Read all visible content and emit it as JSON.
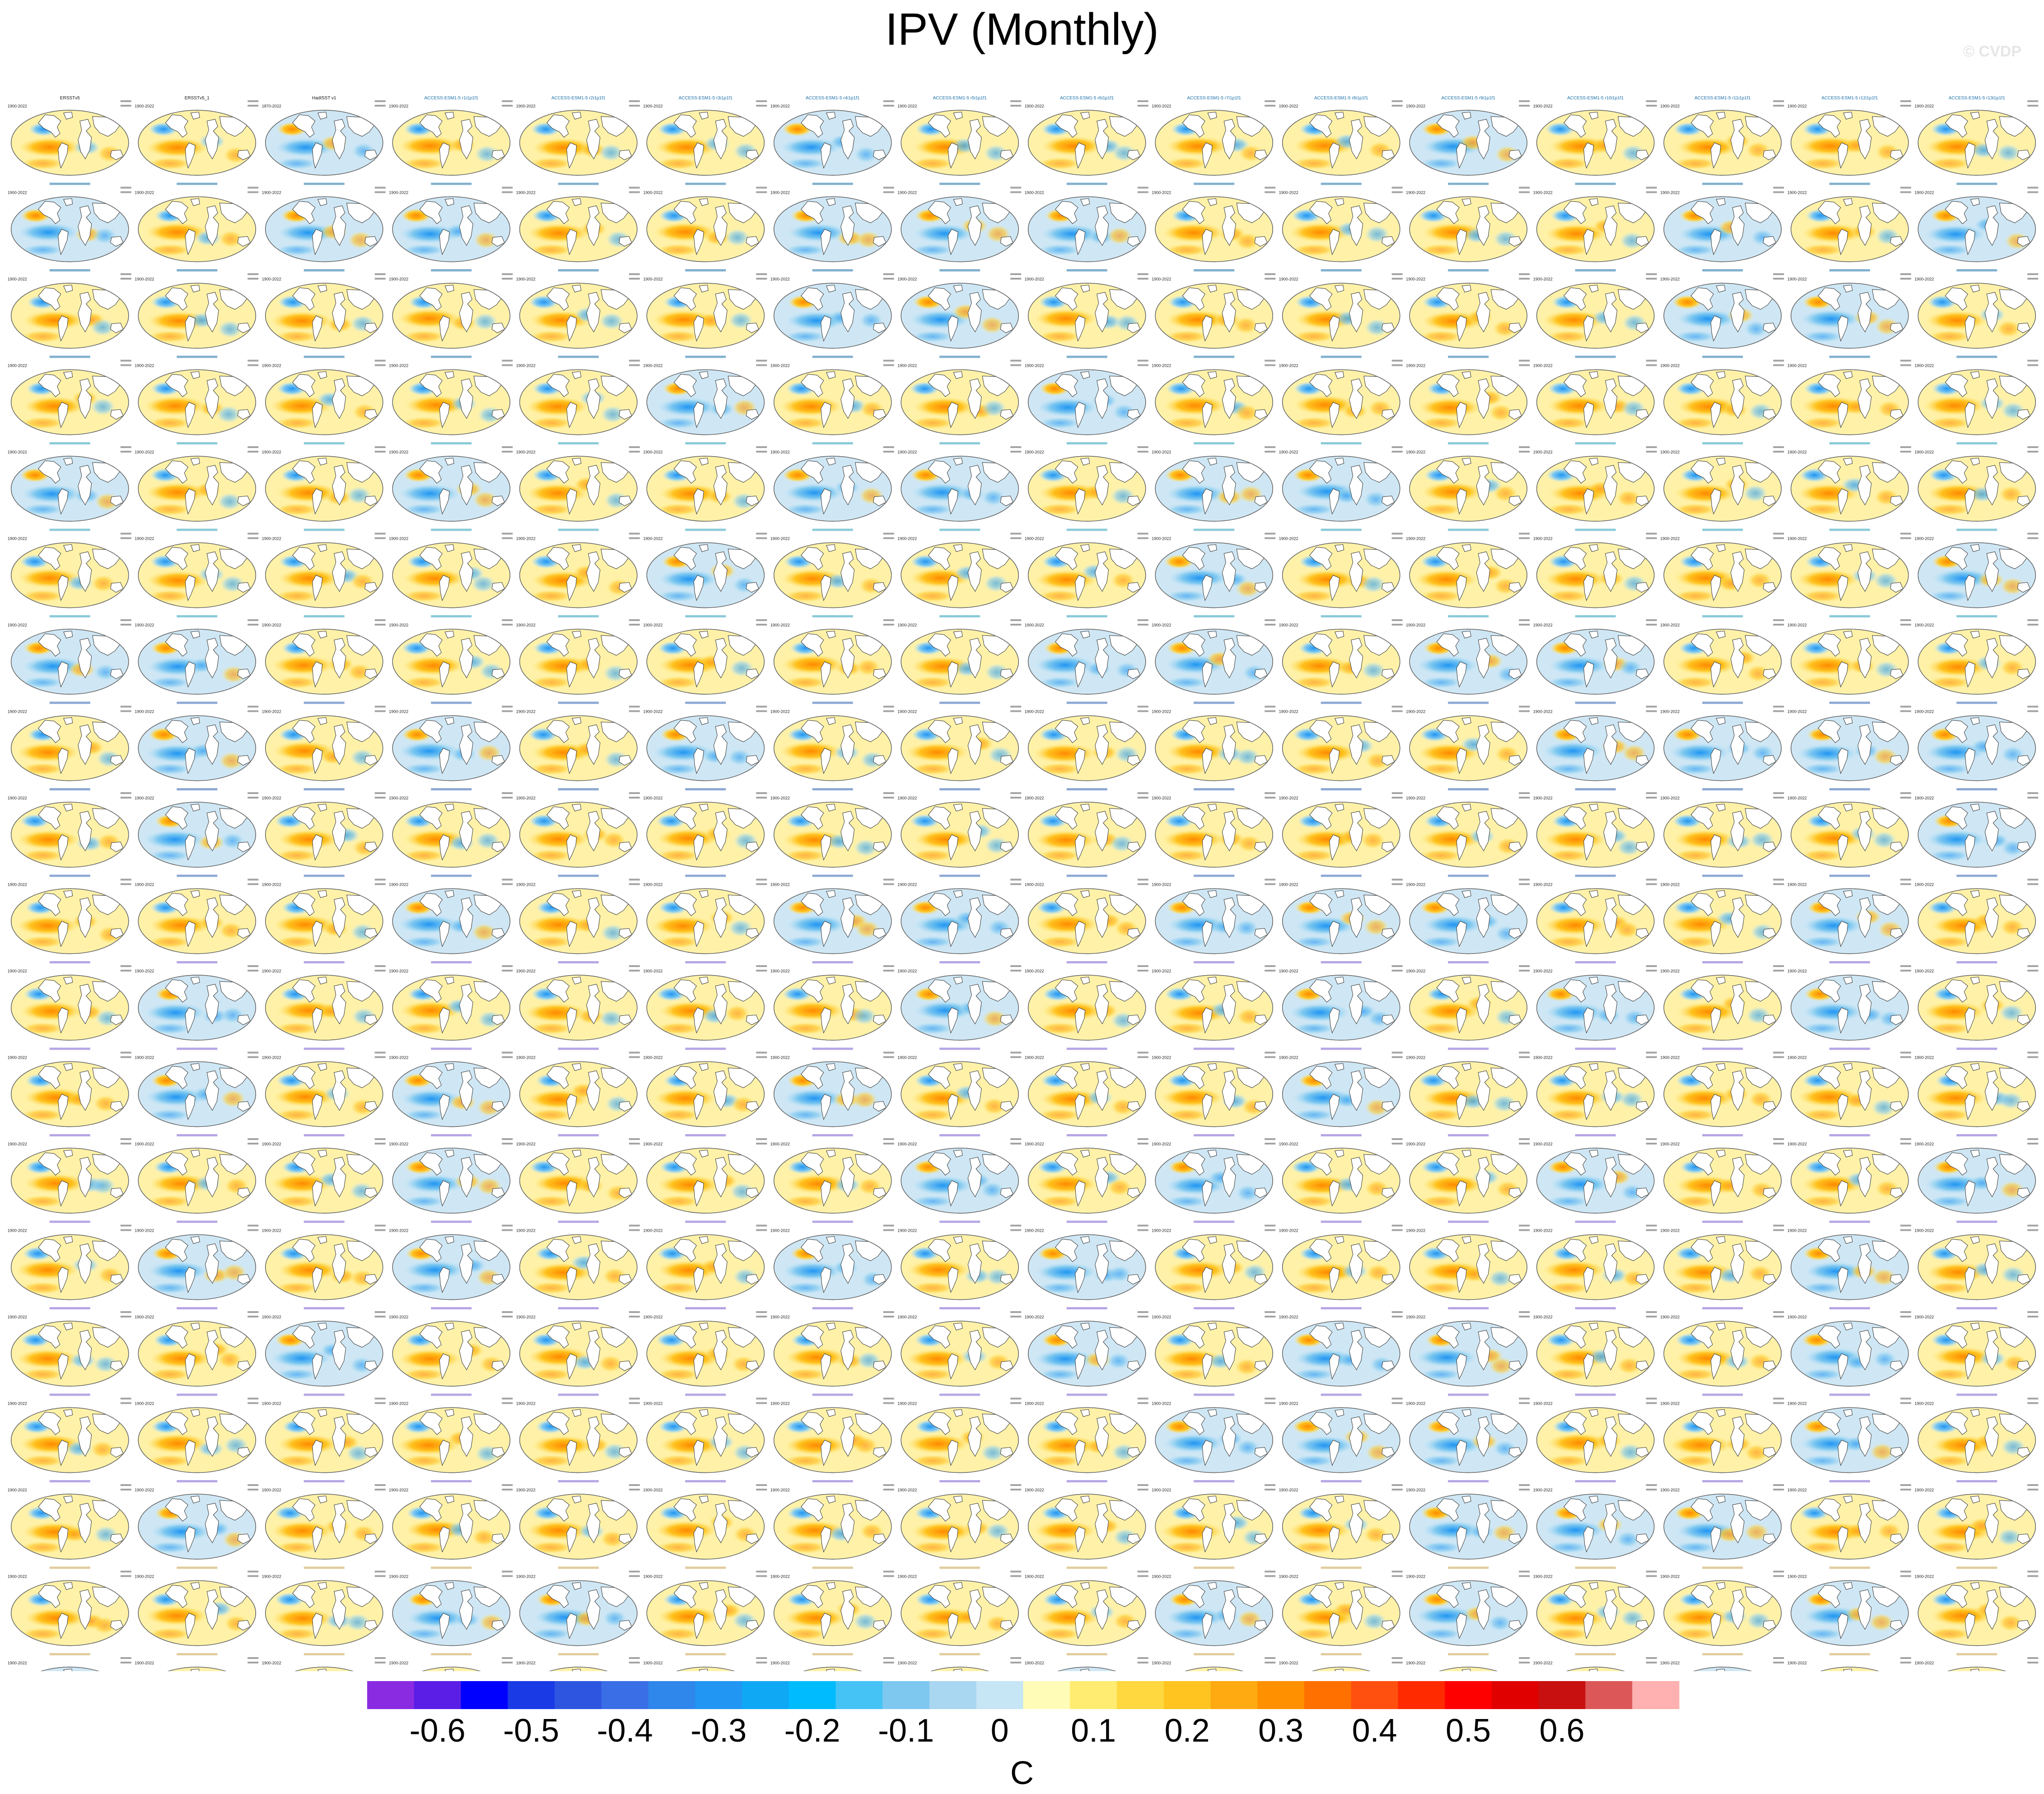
{
  "title": "IPV (Monthly)",
  "watermark": "© CVDP",
  "chart_data": {
    "type": "map-panel-grid",
    "grid": {
      "rows": 19,
      "cols": 16
    },
    "panel_titles_row1": [
      "ERSSTv5",
      "ERSSTv5_1",
      "HadISST v1",
      "ACCESS-ESM1-5 r1i1p1f1",
      "ACCESS-ESM1-5 r2i1p1f1",
      "ACCESS-ESM1-5 r3i1p1f1",
      "ACCESS-ESM1-5 r4i1p1f1",
      "ACCESS-ESM1-5 r5i1p1f1",
      "ACCESS-ESM1-5 r6i1p1f1",
      "ACCESS-ESM1-5 r7i1p1f1",
      "ACCESS-ESM1-5 r8i1p1f1",
      "ACCESS-ESM1-5 r9i1p1f1",
      "ACCESS-ESM1-5 r10i1p1f1",
      "ACCESS-ESM1-5 r11i1p1f1",
      "ACCESS-ESM1-5 r12i1p1f1",
      "ACCESS-ESM1-5 r13i1p1f1"
    ],
    "period_first": "1900-2022",
    "period_third": "1870-2022",
    "colorbar": {
      "label": "C",
      "ticks": [
        "-0.6",
        "-0.5",
        "-0.4",
        "-0.3",
        "-0.2",
        "-0.1",
        "0",
        "0.1",
        "0.2",
        "0.3",
        "0.4",
        "0.5",
        "0.6"
      ],
      "colors": [
        "#8a2be2",
        "#5a1ee6",
        "#0000ff",
        "#1a3ae6",
        "#2e55e0",
        "#3a6ee6",
        "#2f86eb",
        "#2196f3",
        "#0fa8f5",
        "#00bcff",
        "#45c3f5",
        "#7ec8f0",
        "#a9d6f0",
        "#c6e5f5",
        "#fffcb8",
        "#ffec70",
        "#ffd840",
        "#ffc420",
        "#ffaa10",
        "#ff9000",
        "#ff7000",
        "#ff5010",
        "#ff2a00",
        "#ff0000",
        "#e00000",
        "#c81010",
        "#dc5858",
        "#ffb0b0"
      ]
    }
  }
}
